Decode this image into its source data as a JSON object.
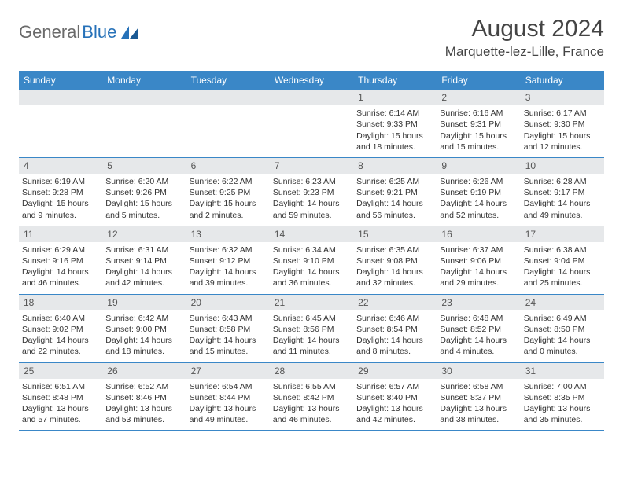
{
  "logo": {
    "text1": "General",
    "text2": "Blue"
  },
  "title": "August 2024",
  "location": "Marquette-lez-Lille, France",
  "colors": {
    "header_bar": "#3a87c7",
    "daynum_bg": "#e6e8ea",
    "rule": "#3a87c7",
    "text": "#333333",
    "logo_gray": "#6a6a6a",
    "logo_blue": "#2671b8"
  },
  "weekdays": [
    "Sunday",
    "Monday",
    "Tuesday",
    "Wednesday",
    "Thursday",
    "Friday",
    "Saturday"
  ],
  "weeks": [
    [
      {
        "n": "",
        "sr": "",
        "ss": "",
        "dl": ""
      },
      {
        "n": "",
        "sr": "",
        "ss": "",
        "dl": ""
      },
      {
        "n": "",
        "sr": "",
        "ss": "",
        "dl": ""
      },
      {
        "n": "",
        "sr": "",
        "ss": "",
        "dl": ""
      },
      {
        "n": "1",
        "sr": "Sunrise: 6:14 AM",
        "ss": "Sunset: 9:33 PM",
        "dl": "Daylight: 15 hours and 18 minutes."
      },
      {
        "n": "2",
        "sr": "Sunrise: 6:16 AM",
        "ss": "Sunset: 9:31 PM",
        "dl": "Daylight: 15 hours and 15 minutes."
      },
      {
        "n": "3",
        "sr": "Sunrise: 6:17 AM",
        "ss": "Sunset: 9:30 PM",
        "dl": "Daylight: 15 hours and 12 minutes."
      }
    ],
    [
      {
        "n": "4",
        "sr": "Sunrise: 6:19 AM",
        "ss": "Sunset: 9:28 PM",
        "dl": "Daylight: 15 hours and 9 minutes."
      },
      {
        "n": "5",
        "sr": "Sunrise: 6:20 AM",
        "ss": "Sunset: 9:26 PM",
        "dl": "Daylight: 15 hours and 5 minutes."
      },
      {
        "n": "6",
        "sr": "Sunrise: 6:22 AM",
        "ss": "Sunset: 9:25 PM",
        "dl": "Daylight: 15 hours and 2 minutes."
      },
      {
        "n": "7",
        "sr": "Sunrise: 6:23 AM",
        "ss": "Sunset: 9:23 PM",
        "dl": "Daylight: 14 hours and 59 minutes."
      },
      {
        "n": "8",
        "sr": "Sunrise: 6:25 AM",
        "ss": "Sunset: 9:21 PM",
        "dl": "Daylight: 14 hours and 56 minutes."
      },
      {
        "n": "9",
        "sr": "Sunrise: 6:26 AM",
        "ss": "Sunset: 9:19 PM",
        "dl": "Daylight: 14 hours and 52 minutes."
      },
      {
        "n": "10",
        "sr": "Sunrise: 6:28 AM",
        "ss": "Sunset: 9:17 PM",
        "dl": "Daylight: 14 hours and 49 minutes."
      }
    ],
    [
      {
        "n": "11",
        "sr": "Sunrise: 6:29 AM",
        "ss": "Sunset: 9:16 PM",
        "dl": "Daylight: 14 hours and 46 minutes."
      },
      {
        "n": "12",
        "sr": "Sunrise: 6:31 AM",
        "ss": "Sunset: 9:14 PM",
        "dl": "Daylight: 14 hours and 42 minutes."
      },
      {
        "n": "13",
        "sr": "Sunrise: 6:32 AM",
        "ss": "Sunset: 9:12 PM",
        "dl": "Daylight: 14 hours and 39 minutes."
      },
      {
        "n": "14",
        "sr": "Sunrise: 6:34 AM",
        "ss": "Sunset: 9:10 PM",
        "dl": "Daylight: 14 hours and 36 minutes."
      },
      {
        "n": "15",
        "sr": "Sunrise: 6:35 AM",
        "ss": "Sunset: 9:08 PM",
        "dl": "Daylight: 14 hours and 32 minutes."
      },
      {
        "n": "16",
        "sr": "Sunrise: 6:37 AM",
        "ss": "Sunset: 9:06 PM",
        "dl": "Daylight: 14 hours and 29 minutes."
      },
      {
        "n": "17",
        "sr": "Sunrise: 6:38 AM",
        "ss": "Sunset: 9:04 PM",
        "dl": "Daylight: 14 hours and 25 minutes."
      }
    ],
    [
      {
        "n": "18",
        "sr": "Sunrise: 6:40 AM",
        "ss": "Sunset: 9:02 PM",
        "dl": "Daylight: 14 hours and 22 minutes."
      },
      {
        "n": "19",
        "sr": "Sunrise: 6:42 AM",
        "ss": "Sunset: 9:00 PM",
        "dl": "Daylight: 14 hours and 18 minutes."
      },
      {
        "n": "20",
        "sr": "Sunrise: 6:43 AM",
        "ss": "Sunset: 8:58 PM",
        "dl": "Daylight: 14 hours and 15 minutes."
      },
      {
        "n": "21",
        "sr": "Sunrise: 6:45 AM",
        "ss": "Sunset: 8:56 PM",
        "dl": "Daylight: 14 hours and 11 minutes."
      },
      {
        "n": "22",
        "sr": "Sunrise: 6:46 AM",
        "ss": "Sunset: 8:54 PM",
        "dl": "Daylight: 14 hours and 8 minutes."
      },
      {
        "n": "23",
        "sr": "Sunrise: 6:48 AM",
        "ss": "Sunset: 8:52 PM",
        "dl": "Daylight: 14 hours and 4 minutes."
      },
      {
        "n": "24",
        "sr": "Sunrise: 6:49 AM",
        "ss": "Sunset: 8:50 PM",
        "dl": "Daylight: 14 hours and 0 minutes."
      }
    ],
    [
      {
        "n": "25",
        "sr": "Sunrise: 6:51 AM",
        "ss": "Sunset: 8:48 PM",
        "dl": "Daylight: 13 hours and 57 minutes."
      },
      {
        "n": "26",
        "sr": "Sunrise: 6:52 AM",
        "ss": "Sunset: 8:46 PM",
        "dl": "Daylight: 13 hours and 53 minutes."
      },
      {
        "n": "27",
        "sr": "Sunrise: 6:54 AM",
        "ss": "Sunset: 8:44 PM",
        "dl": "Daylight: 13 hours and 49 minutes."
      },
      {
        "n": "28",
        "sr": "Sunrise: 6:55 AM",
        "ss": "Sunset: 8:42 PM",
        "dl": "Daylight: 13 hours and 46 minutes."
      },
      {
        "n": "29",
        "sr": "Sunrise: 6:57 AM",
        "ss": "Sunset: 8:40 PM",
        "dl": "Daylight: 13 hours and 42 minutes."
      },
      {
        "n": "30",
        "sr": "Sunrise: 6:58 AM",
        "ss": "Sunset: 8:37 PM",
        "dl": "Daylight: 13 hours and 38 minutes."
      },
      {
        "n": "31",
        "sr": "Sunrise: 7:00 AM",
        "ss": "Sunset: 8:35 PM",
        "dl": "Daylight: 13 hours and 35 minutes."
      }
    ]
  ]
}
